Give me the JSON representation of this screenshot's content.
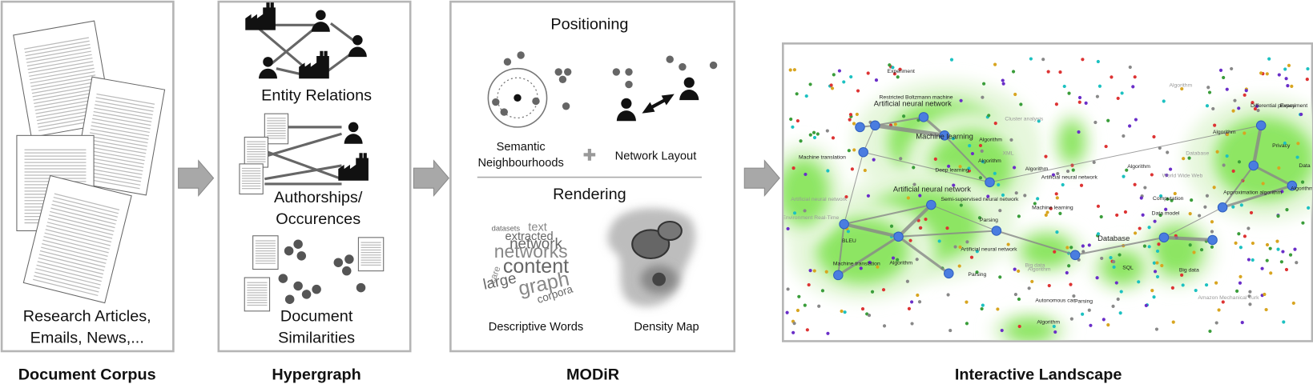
{
  "panels": [
    {
      "caption": "Document Corpus",
      "labels": [
        "Research Articles,",
        "Emails, News,..."
      ]
    },
    {
      "caption": "Hypergraph",
      "labels": [
        "Entity Relations",
        "Authorships/",
        "Occurences",
        "Document",
        "Similarities"
      ]
    },
    {
      "caption": "MODiR",
      "labels": [
        "Positioning",
        "Semantic",
        "Neighbourhoods",
        "Network Layout",
        "Rendering",
        "Descriptive Words",
        "Density Map"
      ],
      "wordcloud": [
        "text",
        "extracted",
        "network",
        "networks",
        "content",
        "large",
        "graph",
        "corpora",
        "datasets",
        "care"
      ]
    },
    {
      "caption": "Interactive Landscape",
      "labels": [
        "Experiment",
        "Algorithm",
        "Restricted Boltzmann machine",
        "Artificial neural network",
        "Cluster analysis",
        "Machine learning",
        "Algorithm",
        "Differential privacy",
        "Experiment",
        "Algorithm",
        "Privacy",
        "Machine translation",
        "XML",
        "Database",
        "Algorithm",
        "Deep learning",
        "Algorithm",
        "Algorithm",
        "Data",
        "Artificial neural network",
        "World Wide Web",
        "Artificial neural network",
        "Approximation algorithm",
        "Algorithm",
        "Semi-supervised neural network",
        "Computation",
        "Artificial neural network",
        "Machine learning",
        "Environment Real-Time",
        "Data model",
        "Parsing",
        "Database",
        "BLEU",
        "Artificial neural network",
        "Machine translation",
        "Algorithm",
        "Big data",
        "Algorithm",
        "SQL",
        "Big data",
        "Parsing",
        "Autonomous car",
        "Parsing",
        "Amazon Mechanical Turk",
        "Algorithm"
      ]
    }
  ]
}
